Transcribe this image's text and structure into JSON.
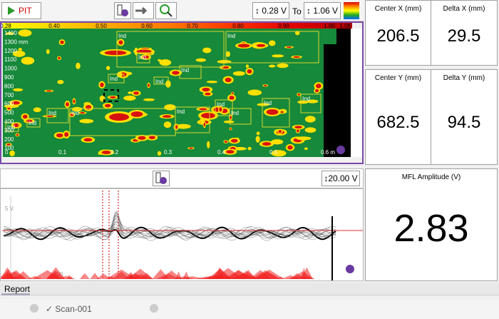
{
  "toolbar": {
    "mode": "PIT",
    "min_threshold": "0.28 V",
    "to": "To",
    "max_threshold": "1.06 V"
  },
  "cscan": {
    "color_scale": [
      "0.28",
      "0.40",
      "0.50",
      "0.60",
      "0.70",
      "0.80",
      "0.90",
      "1.00",
      "1.06"
    ],
    "y_labels": [
      "1400",
      "1300 mm",
      "1200",
      "1100",
      "1000",
      "900",
      "800",
      "700",
      "600",
      "500",
      "400",
      "300",
      "200",
      "100"
    ],
    "x_labels": [
      "0",
      "0.1",
      "0.2",
      "0.3",
      "0.4",
      "0.5",
      "0.6 m"
    ],
    "indication_label": "Ind"
  },
  "strip": {
    "range": "20.00 V",
    "y_label": "5 V",
    "x_label": "300"
  },
  "measurements": [
    {
      "label": "Center X (mm)",
      "value": "206.5"
    },
    {
      "label": "Delta X (mm)",
      "value": "29.5"
    },
    {
      "label": "Center Y (mm)",
      "value": "682.5"
    },
    {
      "label": "Delta Y (mm)",
      "value": "94.5"
    }
  ],
  "amplitude": {
    "label": "MFL Amplitude (V)",
    "value": "2.83"
  },
  "tabs": {
    "report": "Report"
  },
  "scan": {
    "name": "Scan-001"
  }
}
